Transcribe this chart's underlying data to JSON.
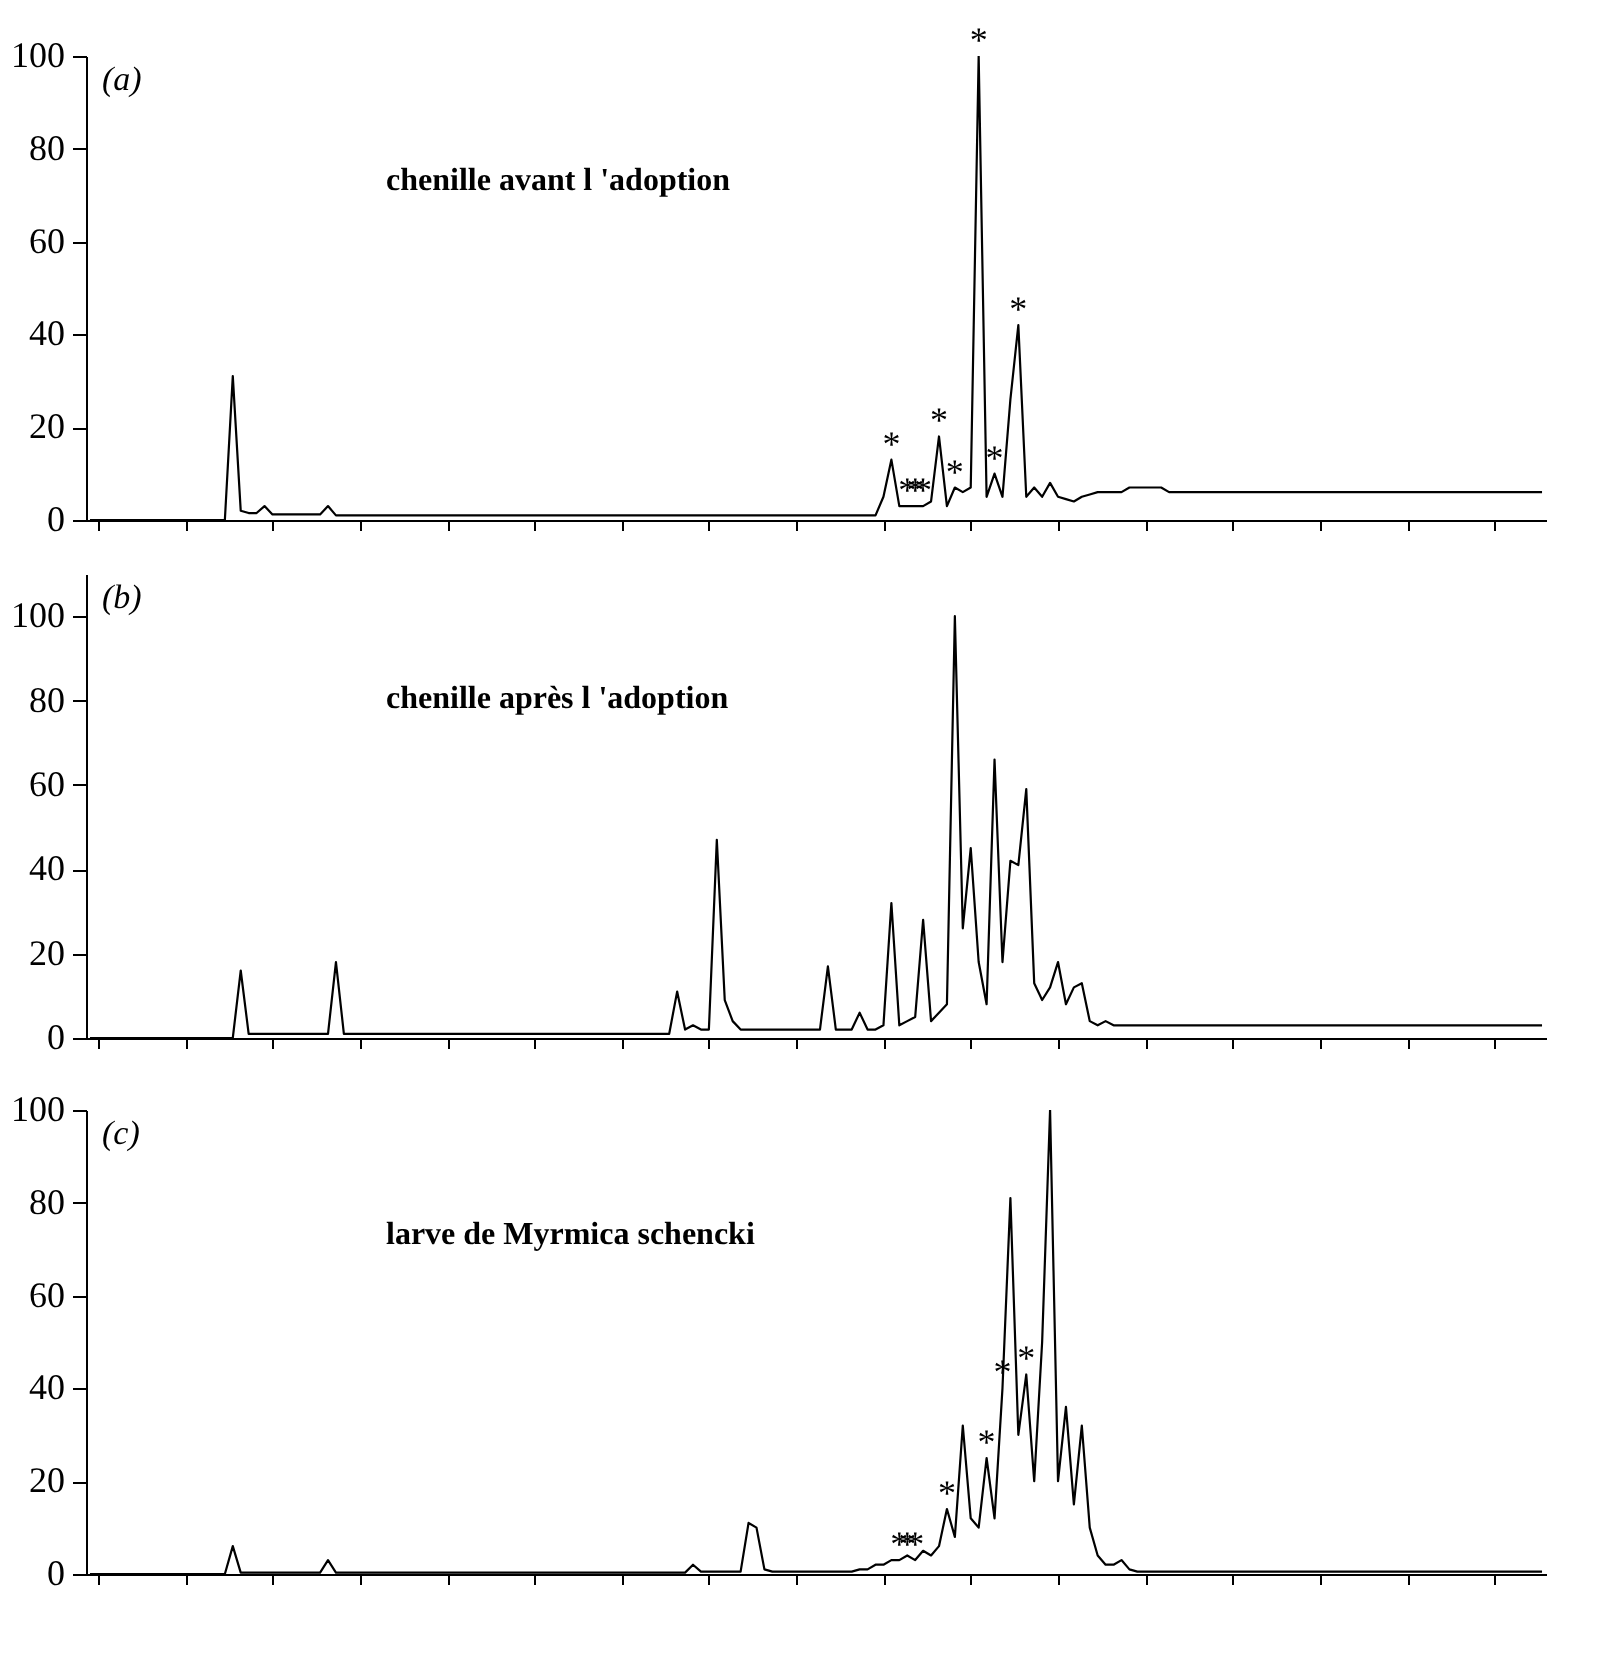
{
  "chart_data": [
    {
      "type": "line",
      "color": "#000000",
      "tick_labels": "y",
      "ylim": [
        0,
        100
      ],
      "yticks": [
        0,
        20,
        40,
        60,
        80,
        100
      ],
      "annotations": [
        "(a)",
        "chenille avant l 'adoption",
        {
          "text": "*",
          "y": 13
        },
        {
          "text": "*",
          "y": 3
        },
        {
          "text": "*",
          "y": 3
        },
        {
          "text": "*",
          "y": 3
        },
        {
          "text": "*",
          "y": 18
        },
        {
          "text": "*",
          "y": 7
        },
        {
          "text": "*",
          "y": 100
        },
        {
          "text": "*",
          "y": 10
        },
        {
          "text": "*",
          "y": 42
        }
      ],
      "categories": [
        null,
        null,
        null,
        null,
        null,
        null,
        null,
        null,
        null,
        null,
        null,
        null,
        null,
        null,
        null,
        null,
        null,
        null,
        null,
        null,
        null,
        null,
        null,
        null,
        null,
        null,
        null,
        null,
        null,
        null,
        null,
        null,
        null,
        null,
        null,
        null,
        null,
        null,
        null,
        null,
        null,
        null,
        null,
        null,
        null,
        null,
        null,
        null,
        null,
        null,
        null,
        null,
        null,
        null,
        null,
        null,
        null,
        null,
        null,
        null,
        null,
        null,
        null,
        null,
        null,
        null,
        null,
        null,
        null,
        null,
        null,
        null,
        null,
        null,
        null,
        null,
        null,
        null,
        null,
        null,
        null,
        null,
        null,
        null,
        null,
        null,
        null,
        null,
        null,
        null,
        null,
        null,
        null,
        null,
        null,
        null,
        null,
        null,
        null,
        null,
        null,
        null,
        null,
        null,
        null,
        null,
        null,
        null,
        null,
        null,
        null,
        null,
        null,
        null,
        null,
        null,
        null,
        null,
        null,
        null,
        null,
        null,
        null,
        null,
        null,
        null,
        null,
        null,
        null,
        null,
        null,
        null,
        null,
        null,
        null,
        null,
        null,
        null,
        null,
        null,
        null,
        null,
        null,
        null,
        null,
        null,
        null,
        null,
        null,
        null,
        null,
        null,
        null,
        null,
        null,
        null,
        null,
        null,
        null,
        null,
        null,
        null,
        null,
        null,
        null,
        null,
        null,
        null,
        null,
        null,
        null,
        null,
        null,
        null,
        null,
        null,
        null,
        null,
        null,
        null,
        null,
        null,
        null,
        null
      ],
      "values": [
        0,
        0,
        0,
        0,
        0,
        0,
        0,
        0,
        0,
        0,
        0,
        0,
        0,
        0,
        0,
        0,
        0,
        0,
        31,
        2,
        1.5,
        1.5,
        3,
        1.2,
        1.2,
        1.2,
        1.2,
        1.2,
        1.2,
        1.2,
        3,
        1,
        1,
        1,
        1,
        1,
        1,
        1,
        1,
        1,
        1,
        1,
        1,
        1,
        1,
        1,
        1,
        1,
        1,
        1,
        1,
        1,
        1,
        1,
        1,
        1,
        1,
        1,
        1,
        1,
        1,
        1,
        1,
        1,
        1,
        1,
        1,
        1,
        1,
        1,
        1,
        1,
        1,
        1,
        1,
        1,
        1,
        1,
        1,
        1,
        1,
        1,
        1,
        1,
        1,
        1,
        1,
        1,
        1,
        1,
        1,
        1,
        1,
        1,
        1,
        1,
        1,
        1,
        1,
        1,
        5,
        13,
        3,
        3,
        3,
        3,
        4,
        18,
        3,
        7,
        6,
        7,
        100,
        5,
        10,
        5,
        26,
        42,
        5,
        7,
        5,
        8,
        5,
        4.5,
        4,
        5,
        5.5,
        6,
        6,
        6,
        6,
        7,
        7,
        7,
        7,
        7,
        6,
        6,
        6,
        6,
        6,
        6,
        6,
        6,
        6,
        6,
        6,
        6,
        6,
        6,
        6,
        6,
        6,
        6,
        6,
        6,
        6,
        6,
        6,
        6,
        6,
        6,
        6,
        6,
        6,
        6,
        6,
        6,
        6,
        6,
        6,
        6,
        6,
        6,
        6,
        6,
        6,
        6,
        6,
        6,
        6,
        6,
        6,
        6
      ]
    },
    {
      "type": "line",
      "color": "#000000",
      "tick_labels": "y",
      "ylim": [
        0,
        110
      ],
      "yticks": [
        0,
        20,
        40,
        60,
        80,
        100
      ],
      "annotations": [
        "(b)",
        "chenille après l 'adoption"
      ],
      "categories": [
        null,
        null,
        null,
        null,
        null,
        null,
        null,
        null,
        null,
        null,
        null,
        null,
        null,
        null,
        null,
        null,
        null,
        null,
        null,
        null,
        null,
        null,
        null,
        null,
        null,
        null,
        null,
        null,
        null,
        null,
        null,
        null,
        null,
        null,
        null,
        null,
        null,
        null,
        null,
        null,
        null,
        null,
        null,
        null,
        null,
        null,
        null,
        null,
        null,
        null,
        null,
        null,
        null,
        null,
        null,
        null,
        null,
        null,
        null,
        null,
        null,
        null,
        null,
        null,
        null,
        null,
        null,
        null,
        null,
        null,
        null,
        null,
        null,
        null,
        null,
        null,
        null,
        null,
        null,
        null,
        null,
        null,
        null,
        null,
        null,
        null,
        null,
        null,
        null,
        null,
        null,
        null,
        null,
        null,
        null,
        null,
        null,
        null,
        null,
        null,
        null,
        null,
        null,
        null,
        null,
        null,
        null,
        null,
        null,
        null,
        null,
        null,
        null,
        null,
        null,
        null,
        null,
        null,
        null,
        null,
        null,
        null,
        null,
        null,
        null,
        null,
        null,
        null,
        null,
        null,
        null,
        null,
        null,
        null,
        null,
        null,
        null,
        null,
        null,
        null,
        null,
        null,
        null,
        null,
        null,
        null,
        null,
        null,
        null,
        null,
        null,
        null,
        null,
        null,
        null,
        null,
        null,
        null,
        null,
        null,
        null,
        null,
        null,
        null,
        null,
        null,
        null,
        null,
        null,
        null,
        null,
        null,
        null,
        null,
        null,
        null,
        null,
        null,
        null,
        null,
        null,
        null,
        null,
        null
      ],
      "values": [
        0,
        0,
        0,
        0,
        0,
        0,
        0,
        0,
        0,
        0,
        0,
        0,
        0,
        0,
        0,
        0,
        0,
        0,
        0,
        16,
        1,
        1,
        1,
        1,
        1,
        1,
        1,
        1,
        1,
        1,
        1,
        18,
        1,
        1,
        1,
        1,
        1,
        1,
        1,
        1,
        1,
        1,
        1,
        1,
        1,
        1,
        1,
        1,
        1,
        1,
        1,
        1,
        1,
        1,
        1,
        1,
        1,
        1,
        1,
        1,
        1,
        1,
        1,
        1,
        1,
        1,
        1,
        1,
        1,
        1,
        1,
        1,
        1,
        1,
        11,
        2,
        3,
        2,
        2,
        47,
        9,
        4,
        2,
        2,
        2,
        2,
        2,
        2,
        2,
        2,
        2,
        2,
        2,
        17,
        2,
        2,
        2,
        6,
        2,
        2,
        3,
        32,
        3,
        4,
        5,
        28,
        4,
        6,
        8,
        100,
        26,
        45,
        18,
        8,
        66,
        18,
        42,
        41,
        59,
        13,
        9,
        12,
        18,
        8,
        12,
        13,
        4,
        3,
        4,
        3,
        3,
        3,
        3,
        3,
        3,
        3,
        3,
        3,
        3,
        3,
        3,
        3,
        3,
        3,
        3,
        3,
        3,
        3,
        3,
        3,
        3,
        3,
        3,
        3,
        3,
        3,
        3,
        3,
        3,
        3,
        3,
        3,
        3,
        3,
        3,
        3,
        3,
        3,
        3,
        3,
        3,
        3,
        3,
        3,
        3,
        3,
        3,
        3,
        3,
        3,
        3,
        3,
        3,
        3
      ]
    },
    {
      "type": "line",
      "color": "#000000",
      "tick_labels": "y",
      "ylim": [
        0,
        100
      ],
      "yticks": [
        0,
        20,
        40,
        60,
        80,
        100
      ],
      "annotations": [
        "(c)",
        "larve de Myrmica schencki",
        {
          "text": "*",
          "y": 3
        },
        {
          "text": "*",
          "y": 3
        },
        {
          "text": "*",
          "y": 3
        },
        {
          "text": "*",
          "y": 14
        },
        {
          "text": "*",
          "y": 25
        },
        {
          "text": "*",
          "y": 40
        },
        {
          "text": "*",
          "y": 43
        }
      ],
      "categories": [
        null,
        null,
        null,
        null,
        null,
        null,
        null,
        null,
        null,
        null,
        null,
        null,
        null,
        null,
        null,
        null,
        null,
        null,
        null,
        null,
        null,
        null,
        null,
        null,
        null,
        null,
        null,
        null,
        null,
        null,
        null,
        null,
        null,
        null,
        null,
        null,
        null,
        null,
        null,
        null,
        null,
        null,
        null,
        null,
        null,
        null,
        null,
        null,
        null,
        null,
        null,
        null,
        null,
        null,
        null,
        null,
        null,
        null,
        null,
        null,
        null,
        null,
        null,
        null,
        null,
        null,
        null,
        null,
        null,
        null,
        null,
        null,
        null,
        null,
        null,
        null,
        null,
        null,
        null,
        null,
        null,
        null,
        null,
        null,
        null,
        null,
        null,
        null,
        null,
        null,
        null,
        null,
        null,
        null,
        null,
        null,
        null,
        null,
        null,
        null,
        null,
        null,
        null,
        null,
        null,
        null,
        null,
        null,
        null,
        null,
        null,
        null,
        null,
        null,
        null,
        null,
        null,
        null,
        null,
        null,
        null,
        null,
        null,
        null,
        null,
        null,
        null,
        null,
        null,
        null,
        null,
        null,
        null,
        null,
        null,
        null,
        null,
        null,
        null,
        null,
        null,
        null,
        null,
        null,
        null,
        null,
        null,
        null,
        null,
        null,
        null,
        null,
        null,
        null,
        null,
        null,
        null,
        null,
        null,
        null,
        null,
        null,
        null,
        null,
        null,
        null,
        null,
        null,
        null,
        null,
        null,
        null,
        null,
        null,
        null,
        null,
        null,
        null,
        null,
        null,
        null,
        null,
        null,
        null
      ],
      "values": [
        0,
        0,
        0,
        0,
        0,
        0,
        0,
        0,
        0,
        0,
        0,
        0,
        0,
        0,
        0,
        0,
        0,
        0,
        6,
        0.3,
        0.3,
        0.3,
        0.3,
        0.3,
        0.3,
        0.3,
        0.3,
        0.3,
        0.3,
        0.3,
        3,
        0.3,
        0.3,
        0.3,
        0.3,
        0.3,
        0.3,
        0.3,
        0.3,
        0.3,
        0.3,
        0.3,
        0.3,
        0.3,
        0.3,
        0.3,
        0.3,
        0.3,
        0.3,
        0.3,
        0.3,
        0.3,
        0.3,
        0.3,
        0.3,
        0.3,
        0.3,
        0.3,
        0.3,
        0.3,
        0.3,
        0.3,
        0.3,
        0.3,
        0.3,
        0.3,
        0.3,
        0.3,
        0.3,
        0.3,
        0.3,
        0.3,
        0.3,
        0.3,
        0.3,
        0.3,
        2,
        0.5,
        0.5,
        0.5,
        0.5,
        0.5,
        0.5,
        11,
        10,
        1,
        0.5,
        0.5,
        0.5,
        0.5,
        0.5,
        0.5,
        0.5,
        0.5,
        0.5,
        0.5,
        0.5,
        1,
        1,
        2,
        2,
        3,
        3,
        4,
        3,
        5,
        4,
        6,
        14,
        8,
        32,
        12,
        10,
        25,
        12,
        40,
        81,
        30,
        43,
        20,
        50,
        100,
        20,
        36,
        15,
        32,
        10,
        4,
        2,
        2,
        3,
        1,
        0.5,
        0.5,
        0.5,
        0.5,
        0.5,
        0.5,
        0.5,
        0.5,
        0.5,
        0.5,
        0.5,
        0.5,
        0.5,
        0.5,
        0.5,
        0.5,
        0.5,
        0.5,
        0.5,
        0.5,
        0.5,
        0.5,
        0.5,
        0.5,
        0.5,
        0.5,
        0.5,
        0.5,
        0.5,
        0.5,
        0.5,
        0.5,
        0.5,
        0.5,
        0.5,
        0.5,
        0.5,
        0.5,
        0.5,
        0.5,
        0.5,
        0.5,
        0.5,
        0.5,
        0.5,
        0.5,
        0.5,
        0.5,
        0.5,
        0.5,
        0.5,
        0.5
      ]
    }
  ]
}
